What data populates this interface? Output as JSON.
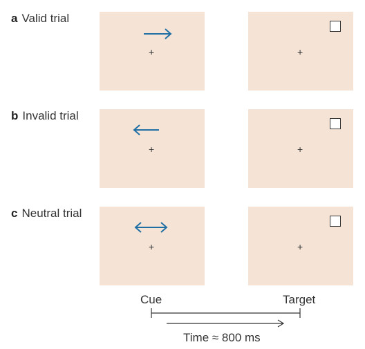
{
  "colors": {
    "panel_bg": "#f5e4d6",
    "cue_arrow": "#1f6fa5",
    "line": "#333333"
  },
  "rows": [
    {
      "letter": "a",
      "title": "Valid trial",
      "cue": "right-arrow-icon"
    },
    {
      "letter": "b",
      "title": "Invalid trial",
      "cue": "left-arrow-icon"
    },
    {
      "letter": "c",
      "title": "Neutral trial",
      "cue": "double-arrow-icon"
    }
  ],
  "fixation": "+",
  "target_icon": "square-icon",
  "axis": {
    "cue_label": "Cue",
    "target_label": "Target",
    "time_label": "Time ≈ 800 ms"
  }
}
